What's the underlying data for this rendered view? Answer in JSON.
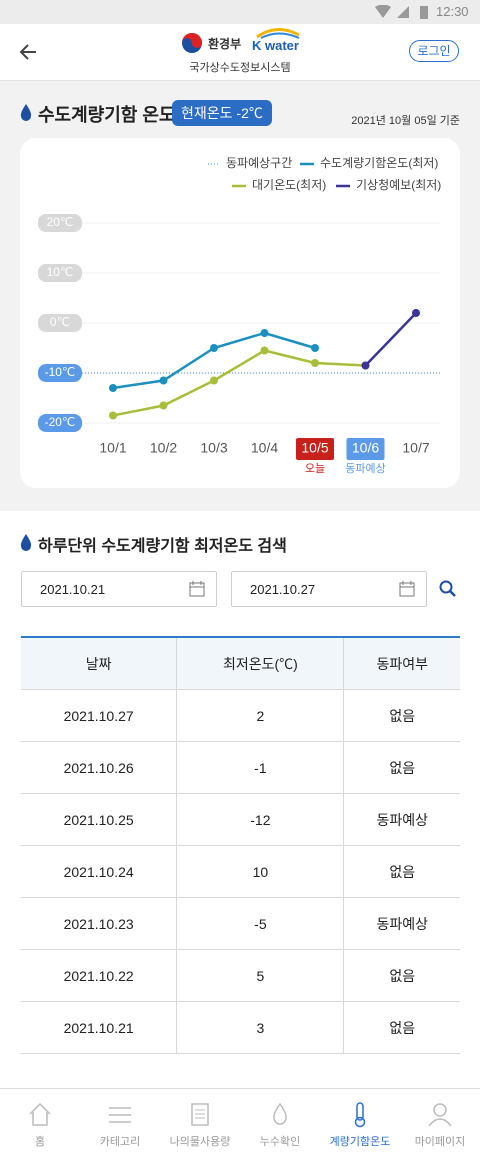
{
  "status_bar": {
    "time": "12:30"
  },
  "header": {
    "ministry": "환경부",
    "brand": "K water",
    "system": "국가상수도정보시스템",
    "login": "로그인"
  },
  "section": {
    "title": "수도계량기함 온도",
    "badge": "현재온도 -2℃",
    "date": "2021년 10월 05일 기준"
  },
  "chart_data": {
    "type": "line",
    "categories": [
      "10/1",
      "10/2",
      "10/3",
      "10/4",
      "10/5",
      "10/6",
      "10/7"
    ],
    "category_notes": [
      null,
      null,
      null,
      null,
      "오늘",
      "동파예상",
      null
    ],
    "category_colors": [
      null,
      null,
      null,
      null,
      "#c8201a",
      "#5b9ae8",
      null
    ],
    "frost_label": "동파예상구간",
    "frost_threshold": -10,
    "frost_color": "#4a90d9",
    "series": [
      {
        "name": "수도계량기함온도(최저)",
        "color": "#1a8fc0",
        "values": [
          -13,
          -11.5,
          -5,
          -2,
          -5,
          null,
          null
        ]
      },
      {
        "name": "대기온도(최저)",
        "color": "#a8be3a",
        "values": [
          -18.5,
          -16.5,
          -11.5,
          -5.5,
          -8,
          -8.5,
          null
        ]
      },
      {
        "name": "기상청예보(최저)",
        "color": "#3a3596",
        "values": [
          null,
          null,
          null,
          null,
          null,
          -8.5,
          2
        ]
      }
    ],
    "ylim": [
      -20,
      20
    ],
    "yticks": [
      {
        "value": 20,
        "label": "20℃"
      },
      {
        "value": 10,
        "label": "10℃"
      },
      {
        "value": 0,
        "label": "0℃"
      },
      {
        "value": -10,
        "label": "-10℃"
      },
      {
        "value": -20,
        "label": "-20℃"
      }
    ],
    "grid": true
  },
  "search": {
    "title": "하루단위 수도계량기함 최저온도 검색",
    "start": "2021.10.21",
    "end": "2021.10.27"
  },
  "table": {
    "headers": [
      "날짜",
      "최저온도(℃)",
      "동파여부"
    ],
    "rows": [
      [
        "2021.10.27",
        2,
        "없음"
      ],
      [
        "2021.10.26",
        -1,
        "없음"
      ],
      [
        "2021.10.25",
        -12,
        "동파예상"
      ],
      [
        "2021.10.24",
        10,
        "없음"
      ],
      [
        "2021.10.23",
        -5,
        "동파예상"
      ],
      [
        "2021.10.22",
        5,
        "없음"
      ],
      [
        "2021.10.21",
        3,
        "없음"
      ]
    ]
  },
  "nav": [
    "홈",
    "카테고리",
    "나의물사용량",
    "누수확인",
    "계량기함온도",
    "마이페이지"
  ]
}
